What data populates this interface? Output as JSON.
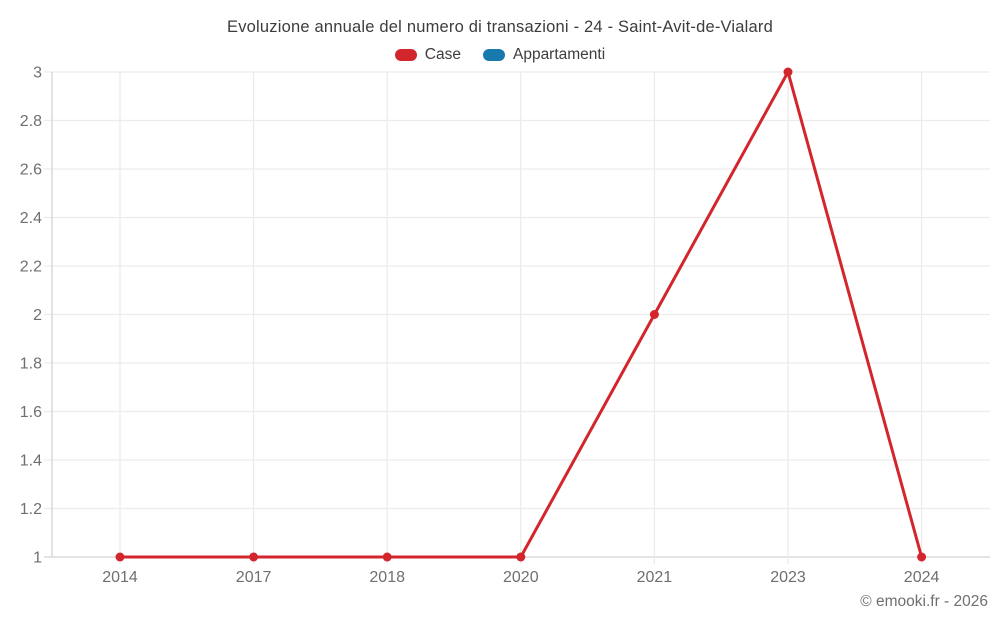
{
  "chart_data": {
    "type": "line",
    "title": "Evoluzione annuale del numero di transazioni - 24 - Saint-Avit-de-Vialard",
    "categories": [
      "2014",
      "2017",
      "2018",
      "2020",
      "2021",
      "2023",
      "2024"
    ],
    "series": [
      {
        "name": "Case",
        "color": "#d3262c",
        "values": [
          1,
          1,
          1,
          1,
          2,
          3,
          1
        ]
      },
      {
        "name": "Appartamenti",
        "color": "#1779ae",
        "values": []
      }
    ],
    "ylim": [
      1,
      3
    ],
    "yticks": [
      1,
      1.2,
      1.4,
      1.6,
      1.8,
      2,
      2.2,
      2.4,
      2.6,
      2.8,
      3
    ],
    "grid": true,
    "legend_position": "top",
    "marker": "circle"
  },
  "footer": {
    "credit": "© emooki.fr - 2026"
  },
  "colors": {
    "background": "#ffffff",
    "gridline": "#ececec",
    "axis_line": "#d4d4d4",
    "title_text": "#3d3d3d",
    "tick_text": "#6f6f6f"
  }
}
